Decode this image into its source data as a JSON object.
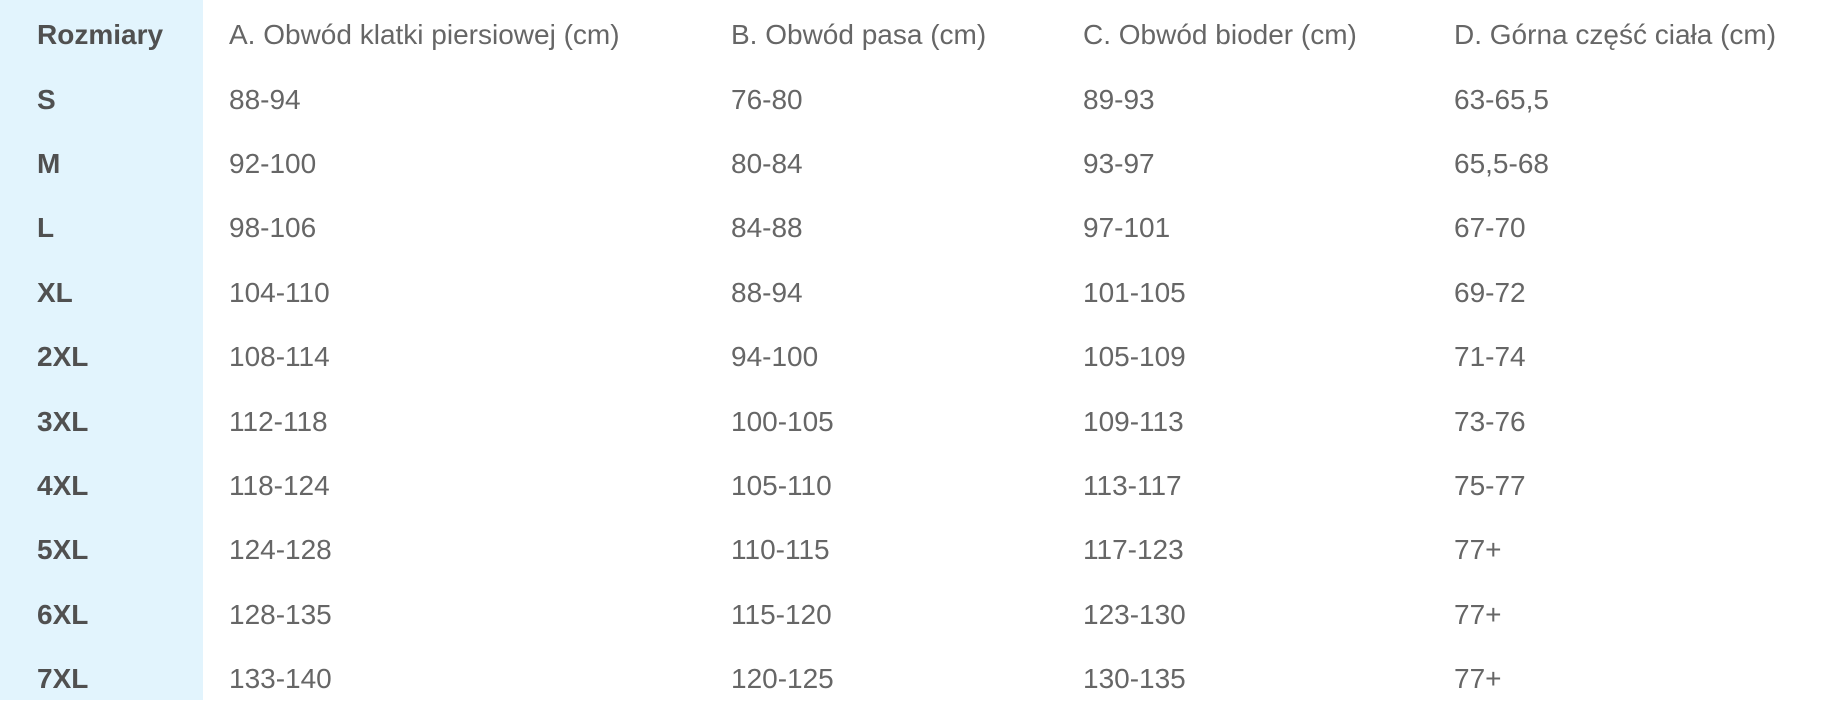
{
  "headers": [
    "Rozmiary",
    "A. Obwód klatki piersiowej (cm)",
    "B. Obwód pasa (cm)",
    "C. Obwód bioder (cm)",
    "D. Górna część ciała (cm)"
  ],
  "rows": [
    [
      "S",
      "88-94",
      "76-80",
      "89-93",
      "63-65,5"
    ],
    [
      "M",
      "92-100",
      "80-84",
      "93-97",
      "65,5-68"
    ],
    [
      "L",
      "98-106",
      "84-88",
      "97-101",
      "67-70"
    ],
    [
      "XL",
      "104-110",
      "88-94",
      "101-105",
      "69-72"
    ],
    [
      "2XL",
      "108-114",
      "94-100",
      "105-109",
      "71-74"
    ],
    [
      "3XL",
      "112-118",
      "100-105",
      "109-113",
      "73-76"
    ],
    [
      "4XL",
      "118-124",
      "105-110",
      "113-117",
      "75-77"
    ],
    [
      "5XL",
      "124-128",
      "110-115",
      "117-123",
      "77+"
    ],
    [
      "6XL",
      "128-135",
      "115-120",
      "123-130",
      "77+"
    ],
    [
      "7XL",
      "133-140",
      "120-125",
      "130-135",
      "77+"
    ]
  ],
  "colors": {
    "size_column_bg": "#e2f4fd",
    "text": "#666666"
  }
}
